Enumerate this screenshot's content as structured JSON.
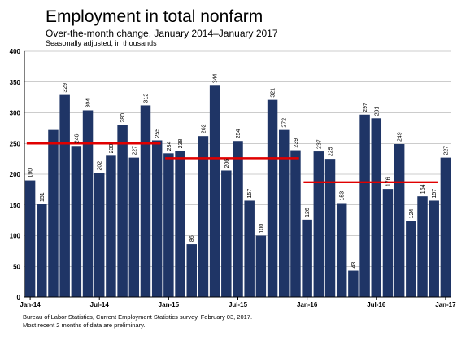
{
  "chart_data": {
    "type": "bar",
    "title": "Employment in total nonfarm",
    "subtitle": "Over-the-month change, January 2014–January 2017",
    "ylabel": "Seasonally adjusted, in thousands",
    "ylim": [
      0,
      400
    ],
    "yticks": [
      0,
      50,
      100,
      150,
      200,
      250,
      300,
      350,
      400
    ],
    "x_tick_labels": [
      "Jan-14",
      "Jul-14",
      "Jan-15",
      "Jul-15",
      "Jan-16",
      "Jul-16",
      "Jan-17"
    ],
    "categories": [
      "Jan-14",
      "Feb-14",
      "Mar-14",
      "Apr-14",
      "May-14",
      "Jun-14",
      "Jul-14",
      "Aug-14",
      "Sep-14",
      "Oct-14",
      "Nov-14",
      "Dec-14",
      "Jan-15",
      "Feb-15",
      "Mar-15",
      "Apr-15",
      "May-15",
      "Jun-15",
      "Jul-15",
      "Aug-15",
      "Sep-15",
      "Oct-15",
      "Nov-15",
      "Dec-15",
      "Jan-16",
      "Feb-16",
      "Mar-16",
      "Apr-16",
      "May-16",
      "Jun-16",
      "Jul-16",
      "Aug-16",
      "Sep-16",
      "Oct-16",
      "Nov-16",
      "Dec-16",
      "Jan-17"
    ],
    "values": [
      190,
      151,
      272,
      329,
      246,
      304,
      202,
      230,
      280,
      227,
      312,
      255,
      234,
      238,
      86,
      262,
      344,
      206,
      254,
      157,
      100,
      321,
      272,
      239,
      126,
      237,
      225,
      153,
      43,
      297,
      291,
      176,
      249,
      124,
      164,
      157,
      227
    ],
    "data_labels": [
      "190",
      "151",
      "",
      "329",
      "246",
      "304",
      "202",
      "230",
      "280",
      "227",
      "312",
      "255",
      "234",
      "238",
      "86",
      "262",
      "344",
      "206",
      "254",
      "157",
      "100",
      "321",
      "272",
      "239",
      "126",
      "237",
      "225",
      "153",
      "43",
      "297",
      "291",
      "176",
      "249",
      "124",
      "164",
      "157",
      "227"
    ],
    "averages": [
      {
        "start": "Jan-14",
        "end": "Dec-14",
        "value": 250
      },
      {
        "start": "Jan-15",
        "end": "Dec-15",
        "value": 226
      },
      {
        "start": "Jan-16",
        "end": "Dec-16",
        "value": 187
      }
    ],
    "colors": {
      "bar": "#1f3566",
      "average_line": "#e00000"
    },
    "grid": true,
    "legend": "none"
  },
  "footer": {
    "source": "Bureau of Labor Statistics, Current Employment Statistics survey, February 03, 2017.",
    "note": "Most recent 2 months of data are preliminary."
  }
}
